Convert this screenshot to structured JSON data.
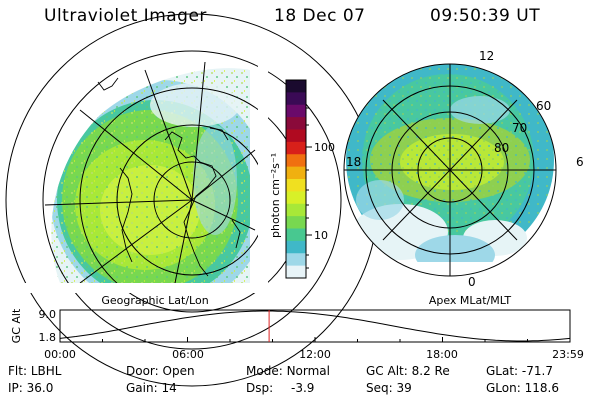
{
  "header": {
    "title": "Ultraviolet Imager",
    "date": "18 Dec 07",
    "time": "09:50:39 UT"
  },
  "left_map": {
    "caption": "Geographic Lat/Lon"
  },
  "right_map": {
    "caption": "Apex MLat/MLT",
    "lat_labels": [
      "60",
      "70",
      "80"
    ],
    "mlt_labels": {
      "top": "12",
      "left": "18",
      "right": "6",
      "bottom": "0"
    }
  },
  "colorbar": {
    "unit_label": "photon cm⁻²s⁻¹",
    "ticks": [
      "100",
      "10"
    ],
    "colors": [
      "#1a0a2e",
      "#3a0a55",
      "#6a0a6a",
      "#8a0a3a",
      "#b00a20",
      "#d8201a",
      "#f07010",
      "#f0b010",
      "#f0e020",
      "#d8f028",
      "#a8e838",
      "#78d850",
      "#48c890",
      "#40b8c8",
      "#9ed8e8",
      "#e8f4f8"
    ]
  },
  "altitude_plot": {
    "ylabel": "GC Alt",
    "y_ticks": [
      "9.0",
      "1.8"
    ],
    "x_ticks": [
      "00:00",
      "06:00",
      "12:00",
      "18:00",
      "23:59"
    ],
    "marker_time_hours": 9.84
  },
  "footer": {
    "row1": [
      {
        "label": "Flt:",
        "value": "LBHL"
      },
      {
        "label": "Door:",
        "value": "Open"
      },
      {
        "label": "Mode:",
        "value": "Normal"
      },
      {
        "label": "GC Alt:",
        "value": "8.2 Re"
      },
      {
        "label": "GLat:",
        "value": "-71.7"
      }
    ],
    "row2": [
      {
        "label": "IP:",
        "value": "36.0"
      },
      {
        "label": "Gain:",
        "value": "14"
      },
      {
        "label": "Dsp:",
        "value": "-3.9"
      },
      {
        "label": "Seq:",
        "value": "39"
      },
      {
        "label": "GLon:",
        "value": "118.6"
      }
    ]
  }
}
